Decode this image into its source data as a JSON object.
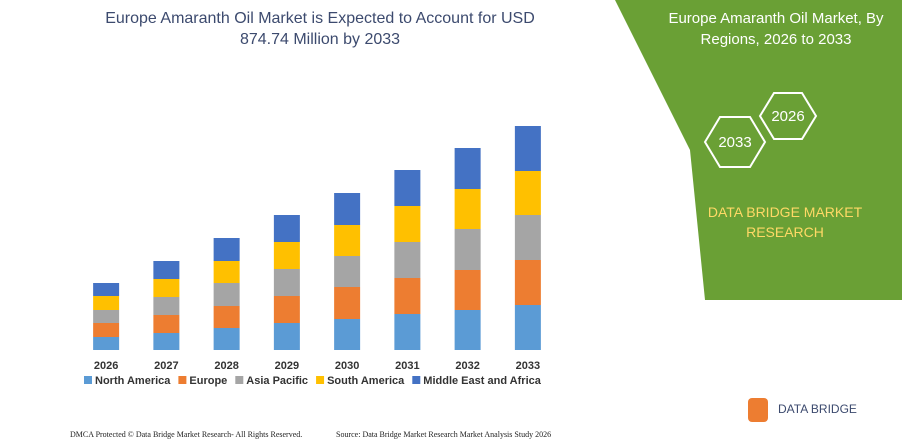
{
  "chart_data": {
    "type": "stacked_bar",
    "title": "Europe Amaranth Oil Market is Expected to Account for USD 874.74 Million by 2033",
    "categories": [
      "2026",
      "2027",
      "2028",
      "2029",
      "2030",
      "2031",
      "2032",
      "2033"
    ],
    "series": [
      {
        "name": "North America",
        "color": "#5b9bd5",
        "values": [
          13,
          17,
          22,
          27,
          31,
          36,
          40,
          45
        ]
      },
      {
        "name": "Europe",
        "color": "#ed7d31",
        "values": [
          14,
          18,
          22,
          27,
          32,
          36,
          40,
          45
        ]
      },
      {
        "name": "Asia Pacific",
        "color": "#a5a5a5",
        "values": [
          13,
          18,
          23,
          27,
          31,
          36,
          41,
          45
        ]
      },
      {
        "name": "South America",
        "color": "#ffc000",
        "values": [
          14,
          18,
          22,
          27,
          31,
          36,
          40,
          44
        ]
      },
      {
        "name": "Middle East and Africa",
        "color": "#4472c4",
        "values": [
          13,
          18,
          23,
          27,
          32,
          36,
          41,
          45
        ]
      }
    ],
    "ylim": [
      0,
      240
    ]
  },
  "panel": {
    "title": "Europe Amaranth Oil Market, By Regions, 2026 to 2033",
    "hex_end": "2033",
    "hex_start": "2026",
    "brand": "DATA BRIDGE MARKET RESEARCH",
    "logo": "DATA BRIDGE"
  },
  "footer": {
    "left": "DMCA Protected © Data Bridge Market Research- All Rights Reserved.",
    "right": "Source: Data Bridge Market Research Market Analysis Study 2026"
  }
}
